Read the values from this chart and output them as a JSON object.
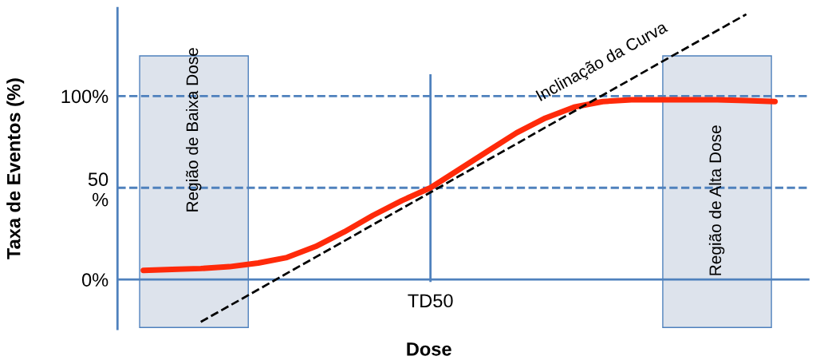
{
  "chart_data": {
    "type": "line",
    "xlabel": "Dose",
    "ylabel": "Taxa de Eventos (%)",
    "categories": [
      null,
      null,
      null,
      null,
      null,
      null,
      null,
      null,
      null,
      null,
      "TD50",
      null,
      null,
      null,
      null,
      null,
      null,
      null,
      null,
      null,
      null,
      null,
      null
    ],
    "series": [
      {
        "color": "#ff2a0a",
        "values": [
          5,
          5.5,
          6,
          7,
          9,
          12,
          18,
          26,
          35,
          43,
          50,
          60,
          70,
          80,
          88,
          94,
          97,
          98,
          98,
          98,
          98,
          97.5,
          97
        ]
      },
      {
        "color": "#000000",
        "line_style": "dashed",
        "values": [
          null,
          null,
          -23.1,
          -14.3,
          -5.5,
          3.4,
          12.2,
          21.0,
          29.9,
          38.7,
          47.5,
          56.4,
          65.2,
          74.0,
          82.9,
          91.7,
          100.5,
          109.3,
          118.2,
          127.0,
          135.8,
          144.6,
          null
        ]
      }
    ],
    "ylim": [
      -27,
      148
    ],
    "yticks": [
      {
        "value": 0,
        "label": "0%"
      },
      {
        "value": 50,
        "label": "50\n%"
      },
      {
        "value": 100,
        "label": "100%"
      }
    ],
    "grid": false,
    "legend": false,
    "marker": "none",
    "ref_lines": [
      {
        "axis": "y",
        "value": 0,
        "color": "#4f81bd",
        "line_style": "solid"
      },
      {
        "axis": "y",
        "value": 50,
        "color": "#4f81bd",
        "line_style": "dashed"
      },
      {
        "axis": "y",
        "value": 100,
        "color": "#4f81bd",
        "line_style": "dashed"
      },
      {
        "axis": "x",
        "value": "TD50",
        "color": "#4f81bd",
        "line_style": "solid"
      }
    ],
    "annotations": [
      "Inclinação da Curva",
      "Região de Baixa Dose",
      "Região de Alta Dose"
    ]
  }
}
